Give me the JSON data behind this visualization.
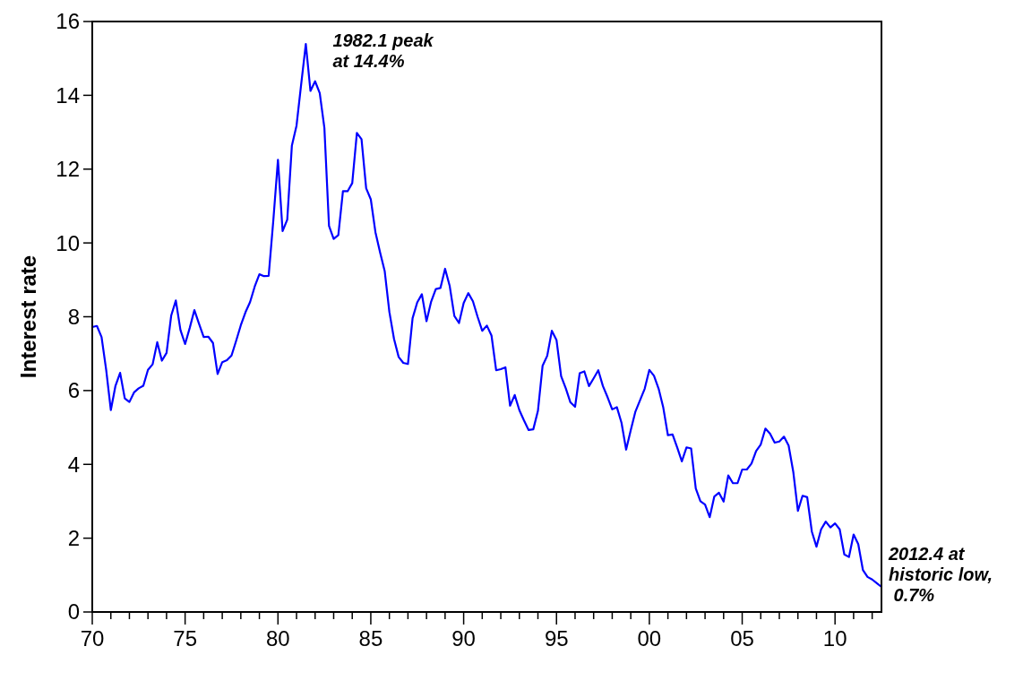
{
  "chart_data": {
    "type": "line",
    "ylabel": "Interest rate",
    "xlim": [
      1970,
      2012.5
    ],
    "xticks": [
      {
        "value": 1970,
        "label": "70"
      },
      {
        "value": 1971,
        "label": null
      },
      {
        "value": 1972,
        "label": null
      },
      {
        "value": 1973,
        "label": null
      },
      {
        "value": 1974,
        "label": null
      },
      {
        "value": 1975,
        "label": "75"
      },
      {
        "value": 1976,
        "label": null
      },
      {
        "value": 1977,
        "label": null
      },
      {
        "value": 1978,
        "label": null
      },
      {
        "value": 1979,
        "label": null
      },
      {
        "value": 1980,
        "label": "80"
      },
      {
        "value": 1981,
        "label": null
      },
      {
        "value": 1982,
        "label": null
      },
      {
        "value": 1983,
        "label": null
      },
      {
        "value": 1984,
        "label": null
      },
      {
        "value": 1985,
        "label": "85"
      },
      {
        "value": 1986,
        "label": null
      },
      {
        "value": 1987,
        "label": null
      },
      {
        "value": 1988,
        "label": null
      },
      {
        "value": 1989,
        "label": null
      },
      {
        "value": 1990,
        "label": "90"
      },
      {
        "value": 1991,
        "label": null
      },
      {
        "value": 1992,
        "label": null
      },
      {
        "value": 1993,
        "label": null
      },
      {
        "value": 1994,
        "label": null
      },
      {
        "value": 1995,
        "label": "95"
      },
      {
        "value": 1996,
        "label": null
      },
      {
        "value": 1997,
        "label": null
      },
      {
        "value": 1998,
        "label": null
      },
      {
        "value": 1999,
        "label": null
      },
      {
        "value": 2000,
        "label": "00"
      },
      {
        "value": 2001,
        "label": null
      },
      {
        "value": 2002,
        "label": null
      },
      {
        "value": 2003,
        "label": null
      },
      {
        "value": 2004,
        "label": null
      },
      {
        "value": 2005,
        "label": "05"
      },
      {
        "value": 2006,
        "label": null
      },
      {
        "value": 2007,
        "label": null
      },
      {
        "value": 2008,
        "label": null
      },
      {
        "value": 2009,
        "label": null
      },
      {
        "value": 2010,
        "label": "10"
      },
      {
        "value": 2011,
        "label": null
      },
      {
        "value": 2012,
        "label": null
      }
    ],
    "ylim": [
      0,
      16
    ],
    "yticks": [
      0,
      2,
      4,
      6,
      8,
      10,
      12,
      14,
      16
    ],
    "grid": false,
    "x": [
      1970,
      1970.25,
      1970.5,
      1970.75,
      1971,
      1971.25,
      1971.5,
      1971.75,
      1972,
      1972.25,
      1972.5,
      1972.75,
      1973,
      1973.25,
      1973.5,
      1973.75,
      1974,
      1974.25,
      1974.5,
      1974.75,
      1975,
      1975.25,
      1975.5,
      1975.75,
      1976,
      1976.25,
      1976.5,
      1976.75,
      1977,
      1977.25,
      1977.5,
      1977.75,
      1978,
      1978.25,
      1978.5,
      1978.75,
      1979,
      1979.25,
      1979.5,
      1979.75,
      1980,
      1980.25,
      1980.5,
      1980.75,
      1981,
      1981.25,
      1981.5,
      1981.75,
      1982,
      1982.25,
      1982.5,
      1982.75,
      1983,
      1983.25,
      1983.5,
      1983.75,
      1984,
      1984.25,
      1984.5,
      1984.75,
      1985,
      1985.25,
      1985.5,
      1985.75,
      1986,
      1986.25,
      1986.5,
      1986.75,
      1987,
      1987.25,
      1987.5,
      1987.75,
      1988,
      1988.25,
      1988.5,
      1988.75,
      1989,
      1989.25,
      1989.5,
      1989.75,
      1990,
      1990.25,
      1990.5,
      1990.75,
      1991,
      1991.25,
      1991.5,
      1991.75,
      1992,
      1992.25,
      1992.5,
      1992.75,
      1993,
      1993.25,
      1993.5,
      1993.75,
      1994,
      1994.25,
      1994.5,
      1994.75,
      1995,
      1995.25,
      1995.5,
      1995.75,
      1996,
      1996.25,
      1996.5,
      1996.75,
      1997,
      1997.25,
      1997.5,
      1997.75,
      1998,
      1998.25,
      1998.5,
      1998.75,
      1999,
      1999.25,
      1999.5,
      1999.75,
      2000,
      2000.25,
      2000.5,
      2000.75,
      2001,
      2001.25,
      2001.5,
      2001.75,
      2002,
      2002.25,
      2002.5,
      2002.75,
      2003,
      2003.25,
      2003.5,
      2003.75,
      2004,
      2004.25,
      2004.5,
      2004.75,
      2005,
      2005.25,
      2005.5,
      2005.75,
      2006,
      2006.25,
      2006.5,
      2006.75,
      2007,
      2007.25,
      2007.5,
      2007.75,
      2008,
      2008.25,
      2008.5,
      2008.75,
      2009,
      2009.25,
      2009.5,
      2009.75,
      2010,
      2010.25,
      2010.5,
      2010.75,
      2011,
      2011.25,
      2011.5,
      2011.75,
      2012,
      2012.25,
      2012.5
    ],
    "series": [
      {
        "color": "#0000ff",
        "values": [
          7.72,
          7.75,
          7.45,
          6.56,
          5.47,
          6.13,
          6.48,
          5.79,
          5.69,
          5.95,
          6.06,
          6.13,
          6.56,
          6.71,
          7.31,
          6.81,
          7.02,
          8.03,
          8.44,
          7.64,
          7.26,
          7.7,
          8.18,
          7.81,
          7.45,
          7.46,
          7.29,
          6.45,
          6.77,
          6.82,
          6.95,
          7.35,
          7.77,
          8.12,
          8.4,
          8.82,
          9.15,
          9.1,
          9.11,
          10.61,
          12.25,
          10.32,
          10.63,
          12.64,
          13.18,
          14.3,
          15.39,
          14.12,
          14.38,
          14.06,
          13.12,
          10.46,
          10.11,
          10.21,
          11.4,
          11.4,
          11.62,
          12.98,
          12.81,
          11.48,
          11.18,
          10.29,
          9.74,
          9.23,
          8.13,
          7.4,
          6.91,
          6.75,
          6.72,
          7.96,
          8.39,
          8.61,
          7.88,
          8.41,
          8.75,
          8.78,
          9.3,
          8.83,
          8.02,
          7.83,
          8.37,
          8.64,
          8.42,
          8,
          7.62,
          7.76,
          7.49,
          6.55,
          6.58,
          6.63,
          5.59,
          5.88,
          5.47,
          5.19,
          4.93,
          4.95,
          5.45,
          6.67,
          6.94,
          7.62,
          7.37,
          6.39,
          6.06,
          5.68,
          5.56,
          6.47,
          6.52,
          6.12,
          6.33,
          6.55,
          6.12,
          5.82,
          5.49,
          5.55,
          5.13,
          4.4,
          4.93,
          5.43,
          5.74,
          6.05,
          6.56,
          6.4,
          6.05,
          5.54,
          4.79,
          4.81,
          4.46,
          4.08,
          4.46,
          4.43,
          3.35,
          3,
          2.91,
          2.57,
          3.13,
          3.23,
          2.99,
          3.7,
          3.49,
          3.49,
          3.86,
          3.86,
          4.02,
          4.36,
          4.54,
          4.97,
          4.83,
          4.59,
          4.62,
          4.75,
          4.51,
          3.8,
          2.74,
          3.15,
          3.11,
          2.18,
          1.77,
          2.24,
          2.45,
          2.29,
          2.4,
          2.24,
          1.56,
          1.49,
          2.1,
          1.84,
          1.14,
          0.95,
          0.88,
          0.78,
          0.68
        ]
      }
    ],
    "annotations": [
      {
        "text": "1982.1 peak\nat 14.4%",
        "x": 1981.5,
        "y": 15.39
      },
      {
        "text": "2012.4 at\nhistoric low,\n 0.7%",
        "x": 2012.5,
        "y": 0.68
      }
    ]
  }
}
